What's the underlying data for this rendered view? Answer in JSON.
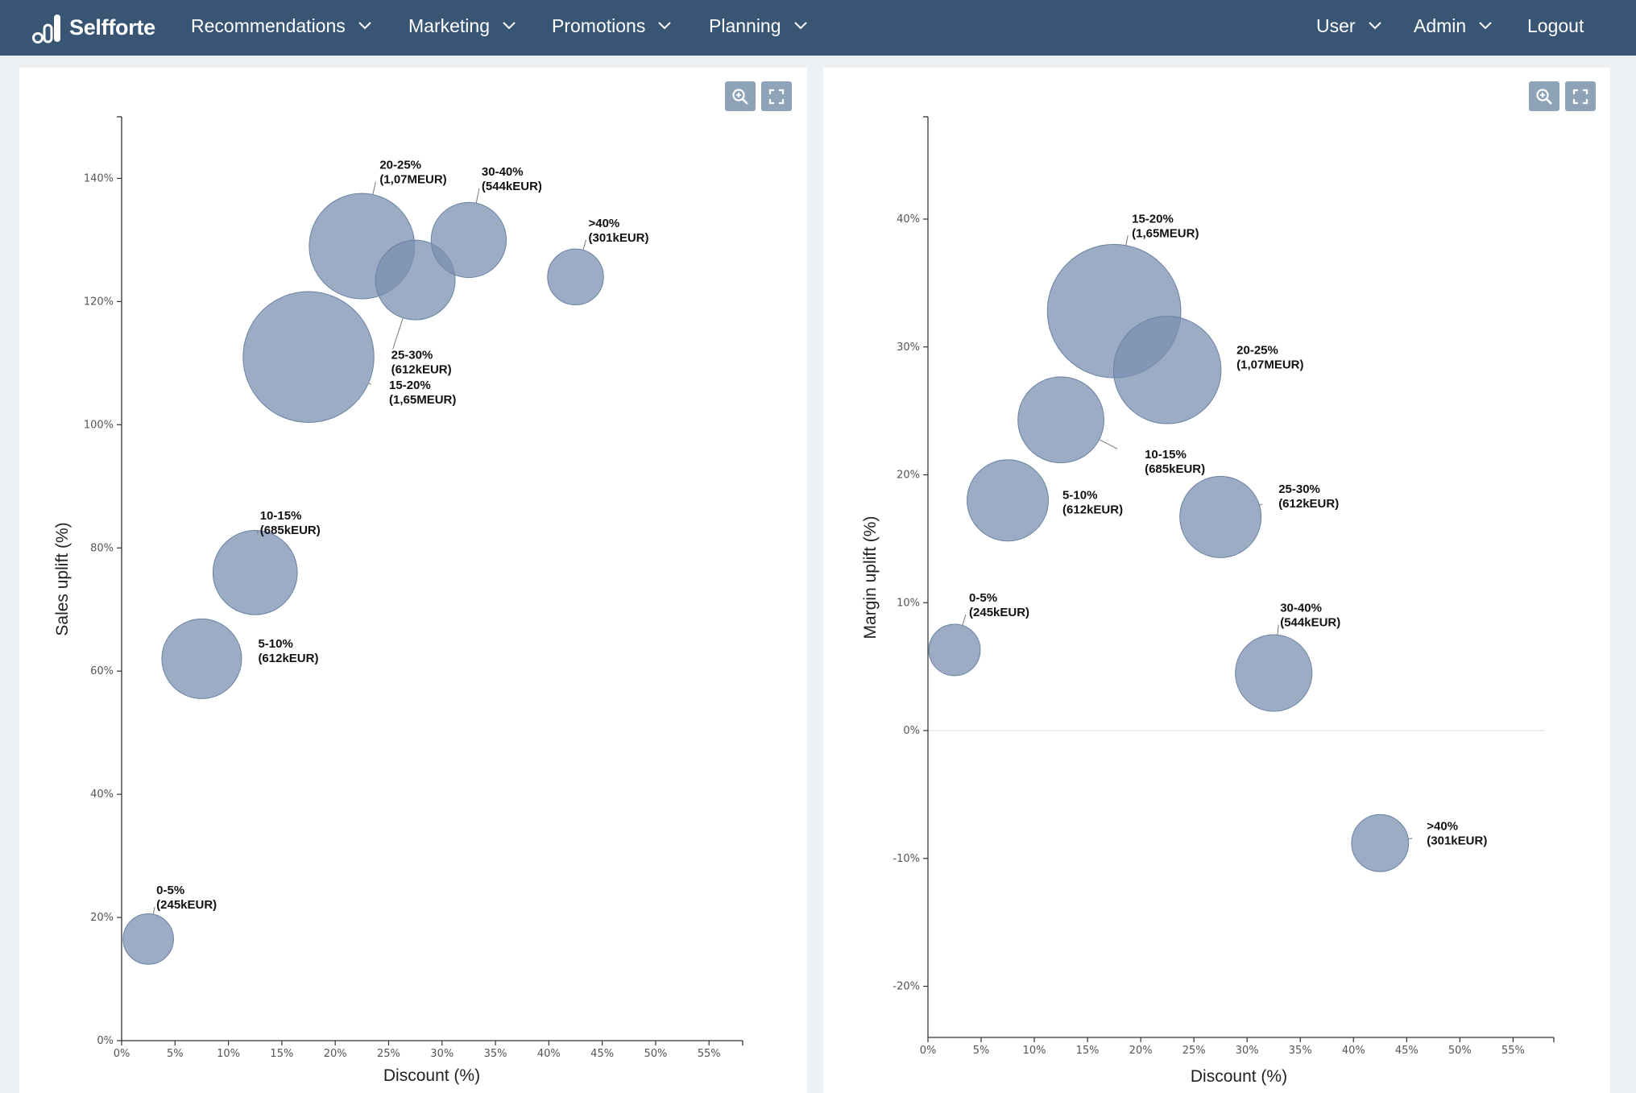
{
  "app": {
    "brand": "Selfforte",
    "nav": [
      {
        "label": "Recommendations"
      },
      {
        "label": "Marketing"
      },
      {
        "label": "Promotions"
      },
      {
        "label": "Planning"
      }
    ],
    "right_nav": [
      {
        "label": "User"
      },
      {
        "label": "Admin"
      },
      {
        "label": "Logout"
      }
    ]
  },
  "toolbar": {
    "zoom_icon": "zoom-in-icon",
    "fullscreen_icon": "fullscreen-icon"
  },
  "colors": {
    "bubble": "#7990b0",
    "header": "#385574",
    "tool_button": "#8ea3b7"
  },
  "chart_data": [
    {
      "type": "scatter",
      "subtype": "bubble",
      "xlabel": "Discount (%)",
      "ylabel": "Sales uplift (%)",
      "xlim": [
        0,
        58
      ],
      "ylim": [
        0,
        150
      ],
      "x_ticks": [
        0,
        5,
        10,
        15,
        20,
        25,
        30,
        35,
        40,
        45,
        50,
        55
      ],
      "x_tick_labels": [
        "0%",
        "5%",
        "10%",
        "15%",
        "20%",
        "25%",
        "30%",
        "35%",
        "40%",
        "45%",
        "50%",
        "55%"
      ],
      "y_ticks": [
        0,
        20,
        40,
        60,
        80,
        100,
        120,
        140
      ],
      "y_tick_labels": [
        "0%",
        "20%",
        "40%",
        "60%",
        "80%",
        "100%",
        "120%",
        "140%"
      ],
      "points": [
        {
          "label": "0-5%",
          "sublabel": "(245kEUR)",
          "x": 2.5,
          "y": 16.5,
          "size": 245
        },
        {
          "label": "5-10%",
          "sublabel": "(612kEUR)",
          "x": 7.5,
          "y": 62,
          "size": 612
        },
        {
          "label": "10-15%",
          "sublabel": "(685kEUR)",
          "x": 12.5,
          "y": 76,
          "size": 685
        },
        {
          "label": "15-20%",
          "sublabel": "(1,65MEUR)",
          "x": 17.5,
          "y": 111,
          "size": 1650
        },
        {
          "label": "20-25%",
          "sublabel": "(1,07MEUR)",
          "x": 22.5,
          "y": 129,
          "size": 1070
        },
        {
          "label": "25-30%",
          "sublabel": "(612kEUR)",
          "x": 27.5,
          "y": 123.5,
          "size": 612
        },
        {
          "label": "30-40%",
          "sublabel": "(544kEUR)",
          "x": 32.5,
          "y": 130,
          "size": 544
        },
        {
          "label": ">40%",
          "sublabel": "(301kEUR)",
          "x": 42.5,
          "y": 124,
          "size": 301
        }
      ]
    },
    {
      "type": "scatter",
      "subtype": "bubble",
      "xlabel": "Discount (%)",
      "ylabel": "Margin uplift (%)",
      "xlim": [
        0,
        58
      ],
      "ylim": [
        -24,
        48
      ],
      "x_ticks": [
        0,
        5,
        10,
        15,
        20,
        25,
        30,
        35,
        40,
        45,
        50,
        55
      ],
      "x_tick_labels": [
        "0%",
        "5%",
        "10%",
        "15%",
        "20%",
        "25%",
        "30%",
        "35%",
        "40%",
        "45%",
        "50%",
        "55%"
      ],
      "y_ticks": [
        -20,
        -10,
        0,
        10,
        20,
        30,
        40
      ],
      "y_tick_labels": [
        "-20%",
        "-10%",
        "0%",
        "10%",
        "20%",
        "30%",
        "40%"
      ],
      "points": [
        {
          "label": "0-5%",
          "sublabel": "(245kEUR)",
          "x": 2.5,
          "y": 6.3,
          "size": 245
        },
        {
          "label": "5-10%",
          "sublabel": "(612kEUR)",
          "x": 7.5,
          "y": 18,
          "size": 612
        },
        {
          "label": "10-15%",
          "sublabel": "(685kEUR)",
          "x": 12.5,
          "y": 24.3,
          "size": 685
        },
        {
          "label": "15-20%",
          "sublabel": "(1,65MEUR)",
          "x": 17.5,
          "y": 32.8,
          "size": 1650
        },
        {
          "label": "20-25%",
          "sublabel": "(1,07MEUR)",
          "x": 22.5,
          "y": 28.2,
          "size": 1070
        },
        {
          "label": "25-30%",
          "sublabel": "(612kEUR)",
          "x": 27.5,
          "y": 16.7,
          "size": 612
        },
        {
          "label": "30-40%",
          "sublabel": "(544kEUR)",
          "x": 32.5,
          "y": 4.5,
          "size": 544
        },
        {
          "label": ">40%",
          "sublabel": "(301kEUR)",
          "x": 42.5,
          "y": -8.8,
          "size": 301
        }
      ]
    }
  ]
}
